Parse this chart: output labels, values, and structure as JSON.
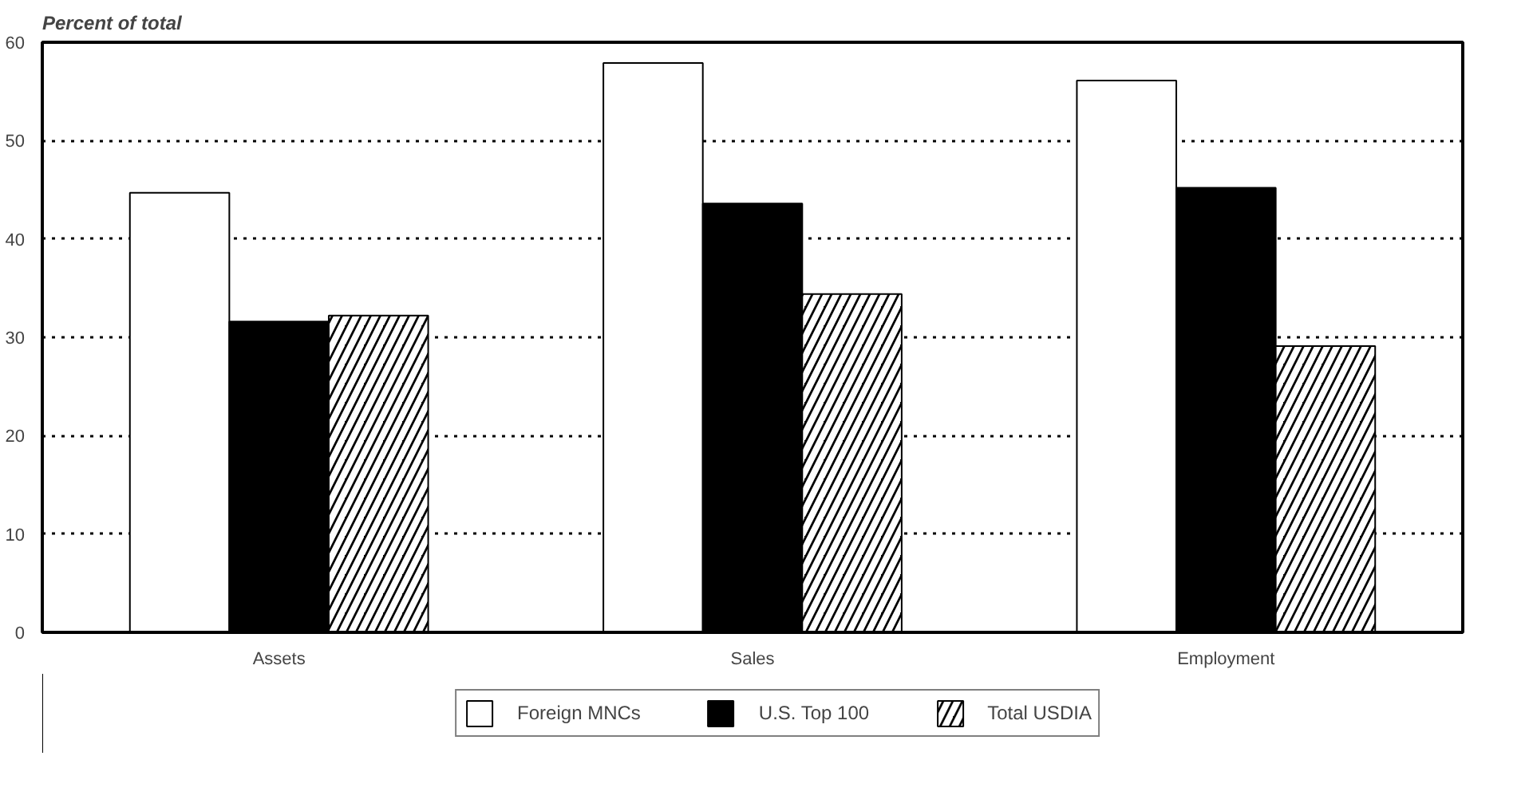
{
  "chart_data": {
    "type": "bar",
    "title": "Percent of total",
    "categories": [
      "Assets",
      "Sales",
      "Employment"
    ],
    "series": [
      {
        "name": "Foreign MNCs",
        "color": "#ffffff",
        "values": [
          44.7,
          57.9,
          56.1
        ]
      },
      {
        "name": "U.S. Top 100",
        "color": "#000000",
        "values": [
          31.6,
          43.6,
          45.2
        ]
      },
      {
        "name": "Total USDIA",
        "color": "#000000",
        "values": [
          32.2,
          34.4,
          29.1
        ]
      }
    ],
    "ylim": [
      0,
      60
    ],
    "yticks": [
      0,
      10,
      20,
      30,
      40,
      50,
      60
    ],
    "grid": "y",
    "legend": "bottom"
  }
}
